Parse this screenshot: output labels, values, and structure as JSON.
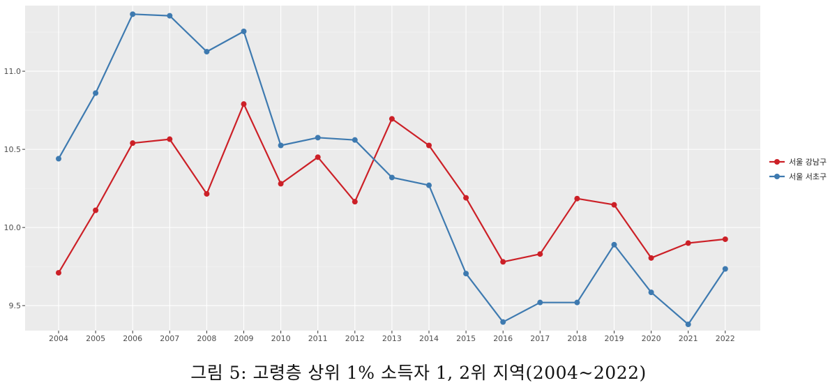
{
  "caption": "그림 5: 고령층 상위 1% 소득자 1, 2위 지역(2004~2022)",
  "chart_data": {
    "type": "line",
    "x": [
      2004,
      2005,
      2006,
      2007,
      2008,
      2009,
      2010,
      2011,
      2012,
      2013,
      2014,
      2015,
      2016,
      2017,
      2018,
      2019,
      2020,
      2021,
      2022
    ],
    "series": [
      {
        "name": "서울 강남구",
        "color": "#cc2027",
        "values": [
          9.71,
          10.11,
          10.54,
          10.565,
          10.215,
          10.79,
          10.28,
          10.45,
          10.165,
          10.695,
          10.525,
          10.19,
          9.78,
          9.83,
          10.185,
          10.145,
          9.805,
          9.9,
          9.925
        ]
      },
      {
        "name": "서울 서초구",
        "color": "#3e7ab0",
        "values": [
          10.44,
          10.86,
          11.365,
          11.355,
          11.125,
          11.255,
          10.525,
          10.575,
          10.56,
          10.32,
          10.27,
          9.705,
          9.395,
          9.52,
          9.52,
          9.89,
          9.585,
          9.38,
          9.735
        ]
      }
    ],
    "y_ticks": [
      "9.5",
      "10.0",
      "10.5",
      "11.0"
    ],
    "ylim": [
      9.34,
      11.42
    ],
    "grid": true,
    "legend_position": "right",
    "title": "",
    "xlabel": "",
    "ylabel": ""
  }
}
